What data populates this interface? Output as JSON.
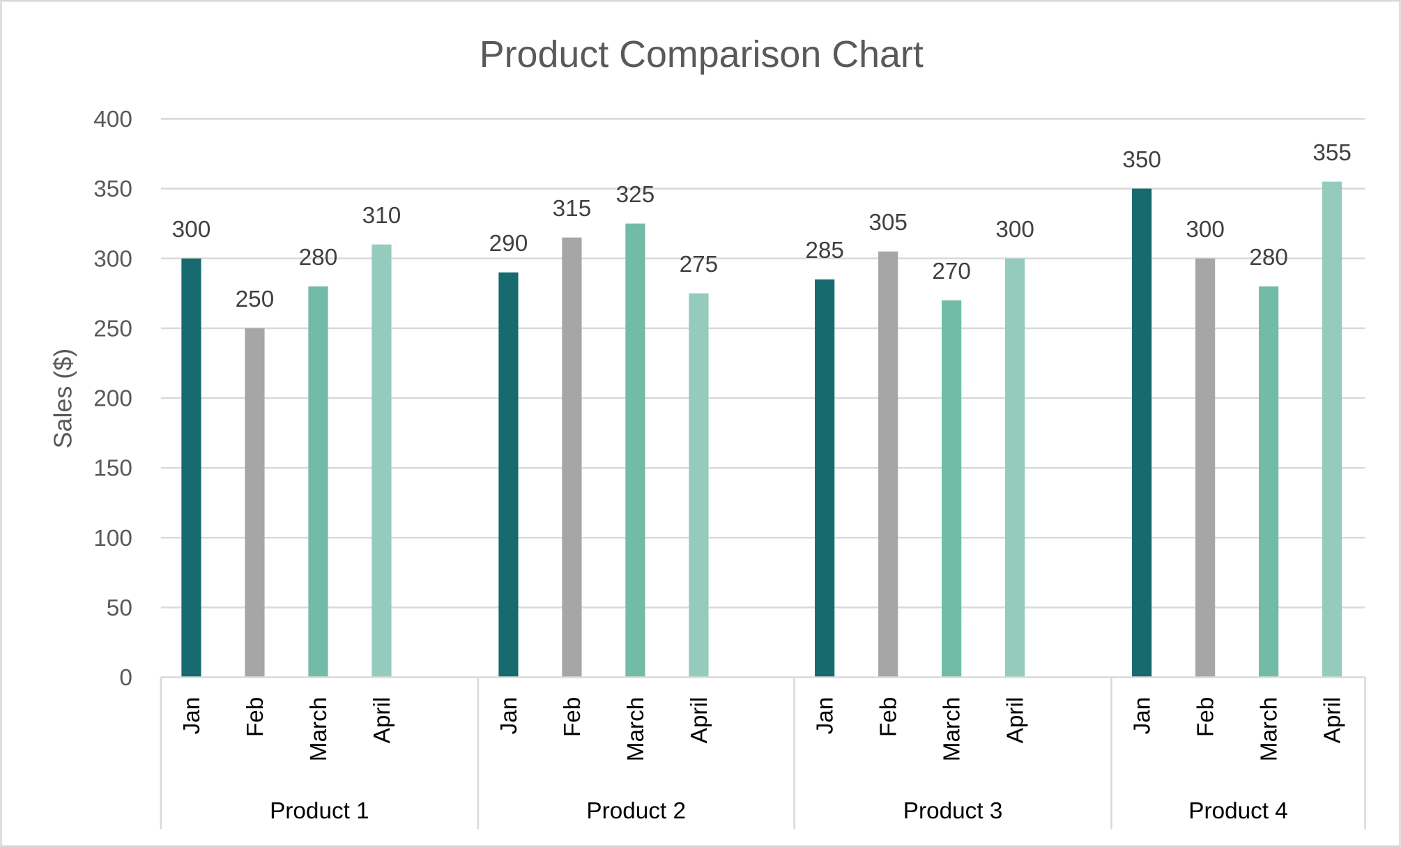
{
  "chart_data": {
    "type": "bar",
    "title": "Product Comparison Chart",
    "xlabel": "",
    "ylabel": "Sales ($)",
    "ylim": [
      0,
      400
    ],
    "yticks": [
      0,
      50,
      100,
      150,
      200,
      250,
      300,
      350,
      400
    ],
    "grid": true,
    "legend": "none",
    "groups": [
      "Product 1",
      "Product 2",
      "Product 3",
      "Product 4"
    ],
    "categories": [
      "Jan",
      "Feb",
      "March",
      "April"
    ],
    "colors": [
      "#166a70",
      "#a6a6a6",
      "#72bba7",
      "#95cbbd"
    ],
    "values": [
      [
        300,
        250,
        280,
        310
      ],
      [
        290,
        315,
        325,
        275
      ],
      [
        285,
        305,
        270,
        300
      ],
      [
        350,
        300,
        280,
        355
      ]
    ],
    "data_labels": true
  }
}
